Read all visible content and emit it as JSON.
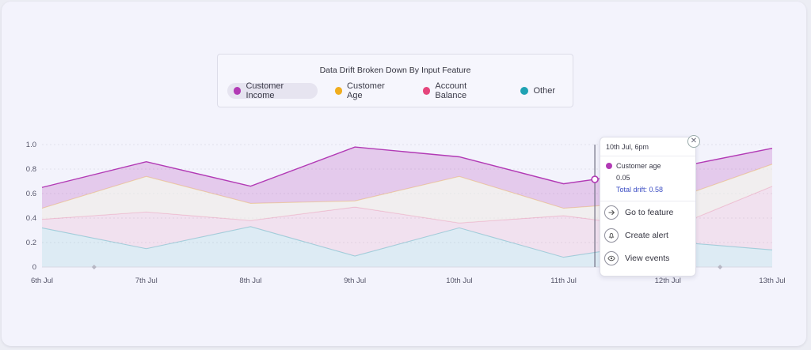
{
  "chart_data": {
    "type": "area",
    "title": "Data Drift Broken Down By Input Feature",
    "xlabel": "",
    "ylabel": "",
    "ylim": [
      0,
      1.0
    ],
    "yticks": [
      0,
      0.2,
      0.4,
      0.6,
      0.8,
      1.0
    ],
    "ytick_labels": [
      "0",
      "0.2",
      "0.4",
      "0.6",
      "0.8",
      "1.0"
    ],
    "categories": [
      "6th Jul",
      "7th Jul",
      "8th Jul",
      "9th Jul",
      "10th Jul",
      "11th Jul",
      "12th Jul",
      "13th Jul"
    ],
    "stacked": true,
    "grid": true,
    "legend_position": "top",
    "series": [
      {
        "name": "Other",
        "color": "#1fa2b3",
        "values": [
          0.32,
          0.15,
          0.33,
          0.09,
          0.32,
          0.08,
          0.21,
          0.14
        ]
      },
      {
        "name": "Account Balance",
        "color": "#e5457c",
        "values": [
          0.07,
          0.3,
          0.05,
          0.4,
          0.04,
          0.34,
          0.1,
          0.52
        ]
      },
      {
        "name": "Customer Age",
        "color": "#f0ad1e",
        "values": [
          0.09,
          0.29,
          0.14,
          0.05,
          0.38,
          0.06,
          0.23,
          0.18
        ]
      },
      {
        "name": "Customer Income",
        "color": "#b23ab5",
        "values": [
          0.17,
          0.12,
          0.14,
          0.44,
          0.16,
          0.2,
          0.26,
          0.13
        ]
      }
    ],
    "active_series": "Customer Income",
    "hover_x": "11th Jul",
    "hover_offset": 0.3
  },
  "colors": {
    "customer_income": "#b23ab5",
    "customer_age": "#f0ad1e",
    "account_balance": "#e5457c",
    "other": "#1fa2b3"
  },
  "tooltip": {
    "time": "10th Jul, 6pm",
    "feature": "Customer age",
    "value": "0.05",
    "total": "Total drift: 0.58",
    "close_icon": "close-icon",
    "actions": [
      {
        "label": "Go to feature",
        "icon": "arrow-right-icon"
      },
      {
        "label": "Create alert",
        "icon": "bell-icon"
      },
      {
        "label": "View events",
        "icon": "eye-icon"
      }
    ]
  }
}
